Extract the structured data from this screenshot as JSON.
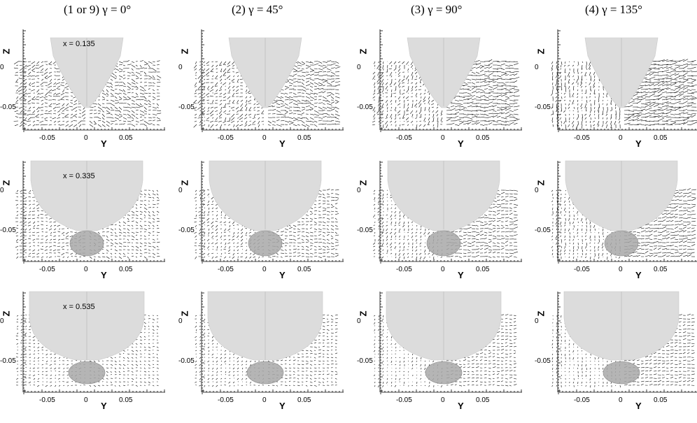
{
  "columns": [
    {
      "title": "(1 or 9) γ = 0°"
    },
    {
      "title": "(2) γ = 45°"
    },
    {
      "title": "(3) γ = 90°"
    },
    {
      "title": "(4) γ = 135°"
    }
  ],
  "rows": [
    {
      "x_label": "x = 0.135"
    },
    {
      "x_label": "x = 0.335"
    },
    {
      "x_label": "x = 0.535"
    }
  ],
  "axes": {
    "z_label": "Z",
    "y_label": "Y",
    "z_ticks": [
      "0",
      "-0.05"
    ],
    "y_ticks": [
      "-0.05",
      "0",
      "0.05"
    ]
  },
  "colors": {
    "hull": "#dcdcdc",
    "bulb": "#a8a8a8",
    "vectors": "#000000",
    "axis": "#000000"
  }
}
